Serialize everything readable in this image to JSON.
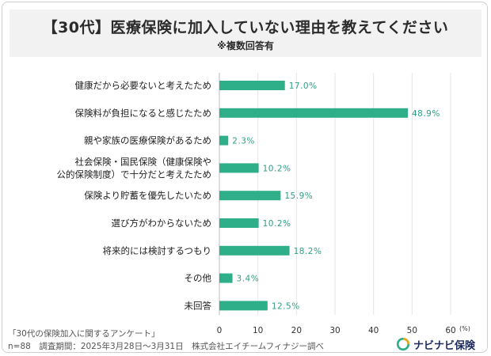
{
  "header": {
    "title": "【30代】医療保険に加入していない理由を教えてください",
    "subtitle": "※複数回答有"
  },
  "chart_data": {
    "type": "bar",
    "orientation": "horizontal",
    "categories": [
      [
        "健康だから必要ないと考えたため"
      ],
      [
        "保険料が負担になると感じたため"
      ],
      [
        "親や家族の医療保険があるため"
      ],
      [
        "社会保険・国民保険（健康保険や",
        "公的保険制度）で十分だと考えたため"
      ],
      [
        "保険より貯蓄を優先したいため"
      ],
      [
        "選び方がわからないため"
      ],
      [
        "将来的には検討するつもり"
      ],
      [
        "その他"
      ],
      [
        "未回答"
      ]
    ],
    "values": [
      17.0,
      48.9,
      2.3,
      10.2,
      15.9,
      10.2,
      18.2,
      3.4,
      12.5
    ],
    "value_labels": [
      "17.0%",
      "48.9%",
      "2.3%",
      "10.2%",
      "15.9%",
      "10.2%",
      "18.2%",
      "3.4%",
      "12.5%"
    ],
    "xlim": [
      0,
      60
    ],
    "xticks": [
      "0",
      "10",
      "20",
      "30",
      "40",
      "50",
      "60"
    ],
    "unit": "(%)",
    "bar_color": "#2fae8a",
    "grid": true
  },
  "footer": {
    "survey": "「30代の保険加入に関するアンケート」",
    "info": "n=88　調査期間：2025年3月28日～3月31日　株式会社エイチームフィナジー調べ"
  },
  "brand": {
    "name": "ナビナビ保険",
    "logo_icon": "navinavi-logo-icon"
  }
}
